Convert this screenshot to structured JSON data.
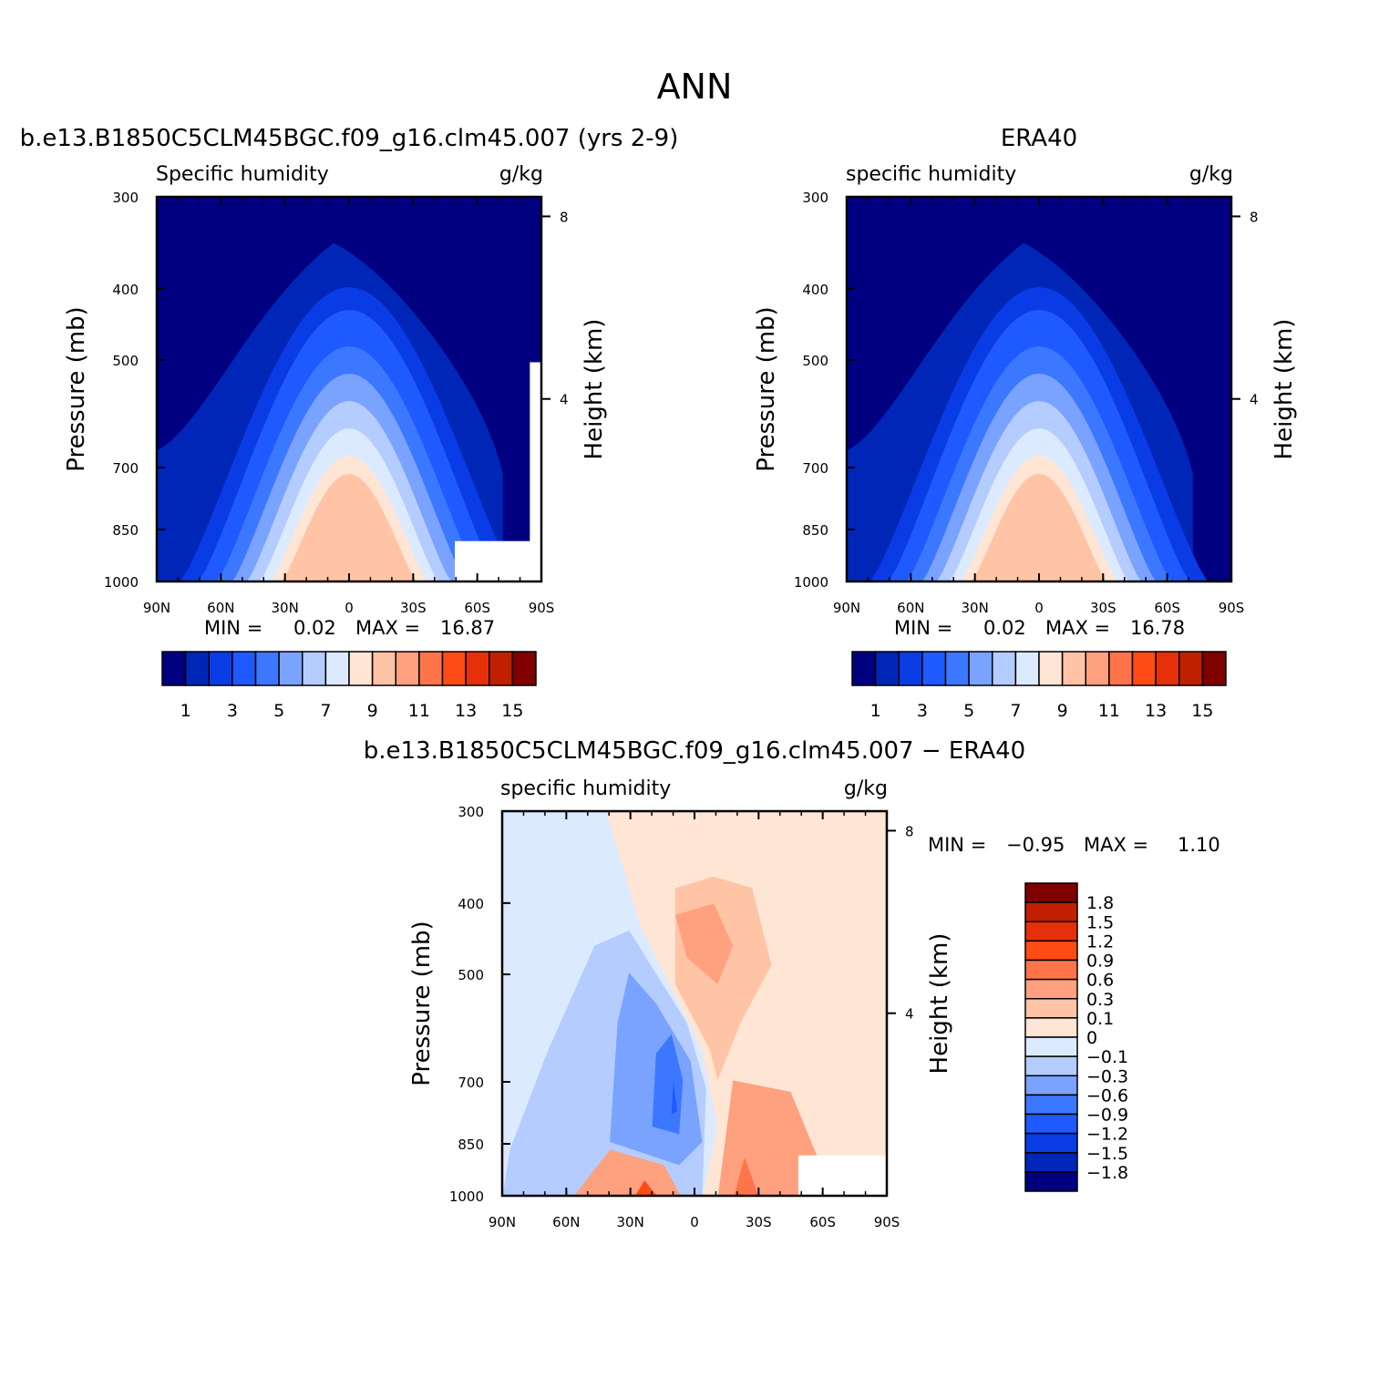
{
  "figure": {
    "main_title": "ANN",
    "colors": {
      "abs_levels": [
        "#000080",
        "#0026b8",
        "#0a3ce6",
        "#1e5aff",
        "#3c78ff",
        "#7aa2ff",
        "#b4ccff",
        "#dceaff",
        "#ffe6d4",
        "#ffc4a6",
        "#ffa07e",
        "#ff7448",
        "#ff4c14",
        "#e6300a",
        "#c02000",
        "#800000"
      ],
      "diff_levels": [
        "#000080",
        "#0026b8",
        "#0a3ce6",
        "#1e5aff",
        "#3c78ff",
        "#7aa2ff",
        "#b4ccff",
        "#dceaff",
        "#ffe6d4",
        "#ffc4a6",
        "#ffa07e",
        "#ff7448",
        "#ff4c14",
        "#e6300a",
        "#c02000",
        "#800000"
      ]
    }
  },
  "chart_data": [
    {
      "type": "heatmap",
      "id": "model",
      "title": "b.e13.B1850C5CLM45BGC.f09_g16.clm45.007 (yrs 2-9)",
      "left_string": "Specific humidity",
      "right_string": "g/kg",
      "xlabel": "",
      "ylabel": "Pressure (mb)",
      "y2label": "Height (km)",
      "x_ticks": [
        "90N",
        "60N",
        "30N",
        "0",
        "30S",
        "60S",
        "90S"
      ],
      "y_ticks": [
        "300",
        "400",
        "500",
        "700",
        "850",
        "1000"
      ],
      "y2_ticks": [
        "8",
        "4"
      ],
      "min_label": "MIN =",
      "min_value": "0.02",
      "max_label": "MAX =",
      "max_value": "16.87",
      "colorbar_labels": [
        "1",
        "3",
        "5",
        "7",
        "9",
        "11",
        "13",
        "15"
      ],
      "peak": 16.87
    },
    {
      "type": "heatmap",
      "id": "obs",
      "title": "ERA40",
      "left_string": "specific humidity",
      "right_string": "g/kg",
      "xlabel": "",
      "ylabel": "Pressure (mb)",
      "y2label": "Height (km)",
      "x_ticks": [
        "90N",
        "60N",
        "30N",
        "0",
        "30S",
        "60S",
        "90S"
      ],
      "y_ticks": [
        "300",
        "400",
        "500",
        "700",
        "850",
        "1000"
      ],
      "y2_ticks": [
        "8",
        "4"
      ],
      "min_label": "MIN =",
      "min_value": "0.02",
      "max_label": "MAX =",
      "max_value": "16.78",
      "colorbar_labels": [
        "1",
        "3",
        "5",
        "7",
        "9",
        "11",
        "13",
        "15"
      ],
      "peak": 16.78
    },
    {
      "type": "heatmap",
      "id": "diff",
      "title": "b.e13.B1850C5CLM45BGC.f09_g16.clm45.007 − ERA40",
      "left_string": "specific humidity",
      "right_string": "g/kg",
      "xlabel": "",
      "ylabel": "Pressure (mb)",
      "y2label": "Height (km)",
      "x_ticks": [
        "90N",
        "60N",
        "30N",
        "0",
        "30S",
        "60S",
        "90S"
      ],
      "y_ticks": [
        "300",
        "400",
        "500",
        "700",
        "850",
        "1000"
      ],
      "y2_ticks": [
        "8",
        "4"
      ],
      "min_label": "MIN =",
      "min_value": "−0.95",
      "max_label": "MAX =",
      "max_value": "1.10",
      "colorbar_labels": [
        "1.8",
        "1.5",
        "1.2",
        "0.9",
        "0.6",
        "0.3",
        "0.1",
        "0",
        "−0.1",
        "−0.3",
        "−0.6",
        "−0.9",
        "−1.2",
        "−1.5",
        "−1.8"
      ]
    }
  ]
}
